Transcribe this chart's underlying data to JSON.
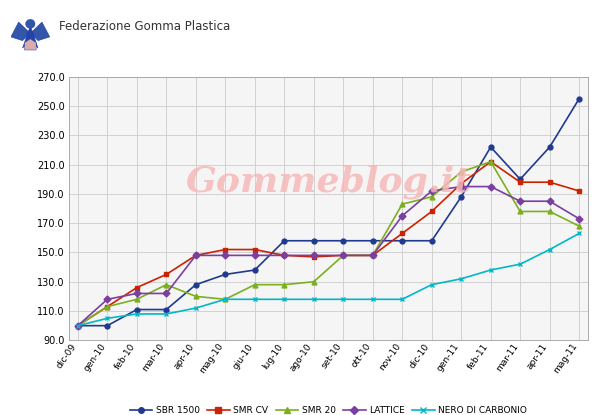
{
  "x_labels": [
    "dic-09",
    "gen-10",
    "feb-10",
    "mar-10",
    "apr-10",
    "mag-10",
    "giu-10",
    "lug-10",
    "ago-10",
    "set-10",
    "ott-10",
    "nov-10",
    "dic-10",
    "gen-11",
    "feb-11",
    "mar-11",
    "apr-11",
    "mag-11"
  ],
  "series": {
    "SBR 1500": {
      "color": "#1F3A8F",
      "marker": "o",
      "values": [
        100,
        100,
        111,
        111,
        128,
        135,
        138,
        158,
        158,
        158,
        158,
        158,
        158,
        188,
        222,
        200,
        222,
        255
      ]
    },
    "SMR CV": {
      "color": "#CC2200",
      "marker": "s",
      "values": [
        100,
        113,
        126,
        135,
        148,
        152,
        152,
        148,
        147,
        148,
        148,
        163,
        178,
        197,
        212,
        198,
        198,
        192
      ]
    },
    "SMR 20": {
      "color": "#7BAF1E",
      "marker": "^",
      "values": [
        100,
        113,
        118,
        128,
        120,
        118,
        128,
        128,
        130,
        148,
        148,
        183,
        188,
        205,
        212,
        178,
        178,
        168
      ]
    },
    "LATTICE": {
      "color": "#7B3FA0",
      "marker": "D",
      "values": [
        100,
        118,
        122,
        122,
        148,
        148,
        148,
        148,
        148,
        148,
        148,
        175,
        192,
        195,
        195,
        185,
        185,
        173
      ]
    },
    "NERO DI CARBONIO": {
      "color": "#00B8C8",
      "marker": "x",
      "values": [
        100,
        105,
        108,
        108,
        112,
        118,
        118,
        118,
        118,
        118,
        118,
        118,
        128,
        132,
        138,
        142,
        152,
        163
      ]
    }
  },
  "ylim": [
    90,
    270
  ],
  "yticks": [
    90.0,
    110.0,
    130.0,
    150.0,
    170.0,
    190.0,
    210.0,
    230.0,
    250.0,
    270.0
  ],
  "background_color": "#ffffff",
  "plot_bg_color": "#f5f5f5",
  "grid_color": "#cccccc",
  "watermark_text": "Gommeblog.it",
  "watermark_color": "#f5b8b8",
  "watermark_alpha": 0.85,
  "header_text": "Federazione Gomma Plastica",
  "header_fontsize": 8.5,
  "legend_fontsize": 6.5,
  "tick_fontsize": 7.0
}
